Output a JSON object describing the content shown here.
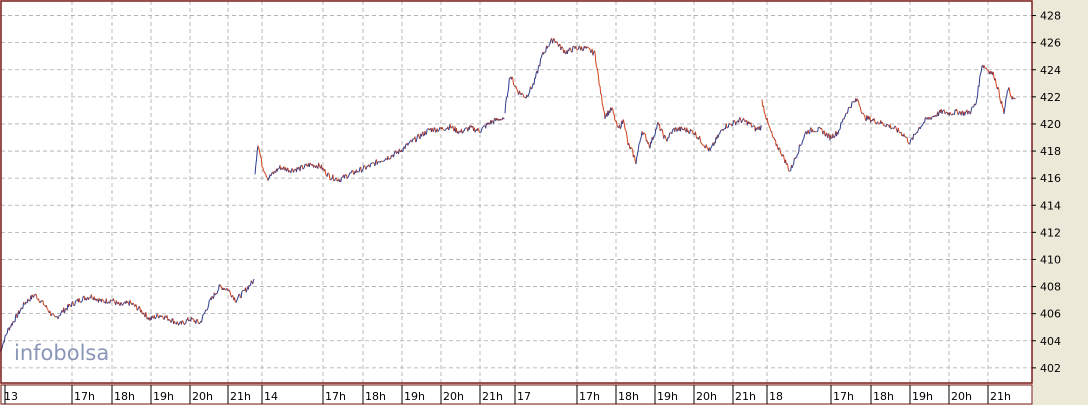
{
  "chart_data": {
    "type": "line",
    "title": "",
    "xlabel": "",
    "ylabel": "",
    "brand": "infobolsa",
    "ylim": [
      401,
      429
    ],
    "y_ticks": [
      402,
      404,
      406,
      408,
      410,
      412,
      414,
      416,
      418,
      420,
      422,
      424,
      426,
      428
    ],
    "x_tick_labels": [
      "13",
      "17h",
      "18h",
      "19h",
      "20h",
      "21h",
      "14",
      "17h",
      "18h",
      "19h",
      "20h",
      "21h",
      "17",
      "17h",
      "18h",
      "19h",
      "20h",
      "21h",
      "18",
      "17h",
      "18h",
      "19h",
      "20h",
      "21h"
    ],
    "grid": true,
    "legend": "none",
    "colors": {
      "up": "#2a3a8c",
      "down": "#d0401a",
      "grid": "#aaaaaa",
      "frame": "#7a1a1a",
      "plot_bg": "#ffffff",
      "panel_bg": "#ece9d8"
    },
    "sessions": [
      {
        "day": "13",
        "points": [
          [
            0,
            403.2
          ],
          [
            8,
            404.8
          ],
          [
            15,
            405.6
          ],
          [
            25,
            406.8
          ],
          [
            35,
            407.4
          ],
          [
            45,
            406.6
          ],
          [
            55,
            405.6
          ],
          [
            63,
            406.2
          ],
          [
            72,
            406.7
          ],
          [
            82,
            407.1
          ],
          [
            92,
            407.3
          ],
          [
            102,
            406.9
          ],
          [
            112,
            407.0
          ],
          [
            120,
            406.6
          ],
          [
            130,
            406.8
          ],
          [
            140,
            406.3
          ],
          [
            150,
            405.6
          ],
          [
            160,
            405.9
          ],
          [
            170,
            405.6
          ],
          [
            180,
            405.2
          ],
          [
            190,
            405.6
          ],
          [
            200,
            405.3
          ],
          [
            210,
            406.9
          ],
          [
            220,
            408.0
          ],
          [
            228,
            407.8
          ],
          [
            236,
            407.0
          ],
          [
            244,
            407.6
          ],
          [
            252,
            408.3
          ],
          [
            255,
            408.5
          ]
        ]
      },
      {
        "day": "14",
        "points": [
          [
            255,
            416.5
          ],
          [
            258,
            418.6
          ],
          [
            262,
            417.0
          ],
          [
            268,
            416.0
          ],
          [
            280,
            416.8
          ],
          [
            290,
            416.6
          ],
          [
            300,
            416.7
          ],
          [
            310,
            417.0
          ],
          [
            320,
            416.9
          ],
          [
            330,
            416.1
          ],
          [
            340,
            415.9
          ],
          [
            350,
            416.3
          ],
          [
            360,
            416.6
          ],
          [
            370,
            416.9
          ],
          [
            380,
            417.3
          ],
          [
            390,
            417.6
          ],
          [
            400,
            418.0
          ],
          [
            410,
            418.6
          ],
          [
            420,
            419.1
          ],
          [
            430,
            419.6
          ],
          [
            440,
            419.6
          ],
          [
            450,
            419.8
          ],
          [
            460,
            419.4
          ],
          [
            470,
            419.7
          ],
          [
            480,
            419.5
          ],
          [
            490,
            420.1
          ],
          [
            500,
            420.4
          ],
          [
            505,
            420.2
          ]
        ]
      },
      {
        "day": "17",
        "points": [
          [
            505,
            421.0
          ],
          [
            510,
            423.6
          ],
          [
            518,
            422.4
          ],
          [
            526,
            422.0
          ],
          [
            534,
            423.0
          ],
          [
            542,
            425.0
          ],
          [
            548,
            425.8
          ],
          [
            554,
            426.3
          ],
          [
            560,
            425.7
          ],
          [
            566,
            425.3
          ],
          [
            575,
            425.6
          ],
          [
            585,
            425.6
          ],
          [
            595,
            425.2
          ],
          [
            600,
            422.6
          ],
          [
            605,
            420.6
          ],
          [
            612,
            421.1
          ],
          [
            618,
            419.6
          ],
          [
            624,
            420.3
          ],
          [
            628,
            418.5
          ],
          [
            632,
            418.0
          ],
          [
            636,
            417.2
          ],
          [
            642,
            419.5
          ],
          [
            650,
            418.4
          ],
          [
            658,
            420.0
          ],
          [
            666,
            418.8
          ],
          [
            674,
            419.6
          ],
          [
            684,
            419.6
          ],
          [
            694,
            419.4
          ],
          [
            704,
            418.5
          ],
          [
            710,
            418.0
          ],
          [
            716,
            418.8
          ],
          [
            724,
            419.8
          ],
          [
            732,
            420.0
          ],
          [
            740,
            420.3
          ],
          [
            748,
            420.1
          ],
          [
            756,
            419.6
          ],
          [
            762,
            419.8
          ]
        ]
      },
      {
        "day": "18",
        "points": [
          [
            762,
            421.7
          ],
          [
            768,
            420.0
          ],
          [
            774,
            418.8
          ],
          [
            782,
            417.8
          ],
          [
            790,
            416.5
          ],
          [
            798,
            418.0
          ],
          [
            806,
            419.4
          ],
          [
            814,
            419.6
          ],
          [
            822,
            419.5
          ],
          [
            830,
            419.0
          ],
          [
            838,
            419.4
          ],
          [
            846,
            420.8
          ],
          [
            852,
            421.5
          ],
          [
            858,
            421.8
          ],
          [
            864,
            420.5
          ],
          [
            872,
            420.3
          ],
          [
            880,
            420.1
          ],
          [
            888,
            419.9
          ],
          [
            896,
            419.6
          ],
          [
            904,
            419.2
          ],
          [
            910,
            418.6
          ],
          [
            918,
            419.6
          ],
          [
            926,
            420.3
          ],
          [
            934,
            420.6
          ],
          [
            942,
            420.9
          ],
          [
            950,
            420.8
          ],
          [
            958,
            420.9
          ],
          [
            964,
            420.8
          ],
          [
            970,
            420.9
          ],
          [
            976,
            421.5
          ],
          [
            982,
            424.4
          ],
          [
            988,
            424.0
          ],
          [
            994,
            423.6
          ],
          [
            998,
            422.6
          ],
          [
            1004,
            420.8
          ],
          [
            1008,
            422.6
          ],
          [
            1012,
            422.0
          ],
          [
            1016,
            421.6
          ]
        ]
      }
    ]
  }
}
